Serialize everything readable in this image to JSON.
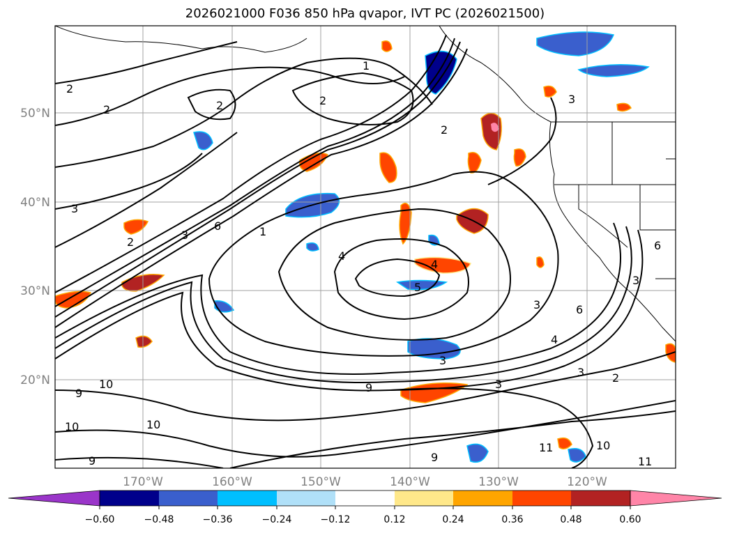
{
  "title": "2026021000 F036 850 hPa qvapor, IVT PC (2026021500)",
  "map": {
    "lat_labels": [
      "50°N",
      "40°N",
      "30°N",
      "20°N"
    ],
    "lon_labels": [
      "170°W",
      "160°W",
      "150°W",
      "140°W",
      "130°W",
      "120°W"
    ],
    "gridline_color": "#a0a0a0",
    "land_color": "#ffffff",
    "contour_labels": [
      "2",
      "2",
      "2",
      "2",
      "1",
      "2",
      "2",
      "3",
      "3",
      "3",
      "3",
      "3",
      "1",
      "6",
      "4",
      "4",
      "5",
      "3",
      "4",
      "6",
      "3",
      "2",
      "9",
      "9",
      "9",
      "9",
      "10",
      "10",
      "10",
      "10",
      "11",
      "11",
      "3",
      "6"
    ]
  },
  "colorbar": {
    "ticks": [
      "−0.60",
      "−0.48",
      "−0.36",
      "−0.24",
      "−0.12",
      "0.12",
      "0.24",
      "0.36",
      "0.48",
      "0.60"
    ],
    "colors": [
      "#9a35c9",
      "#00008b",
      "#3a5fcd",
      "#00bfff",
      "#b0e0f8",
      "#ffffff",
      "#ffe88a",
      "#ffa500",
      "#ff4500",
      "#b22222",
      "#ff85a8"
    ]
  }
}
